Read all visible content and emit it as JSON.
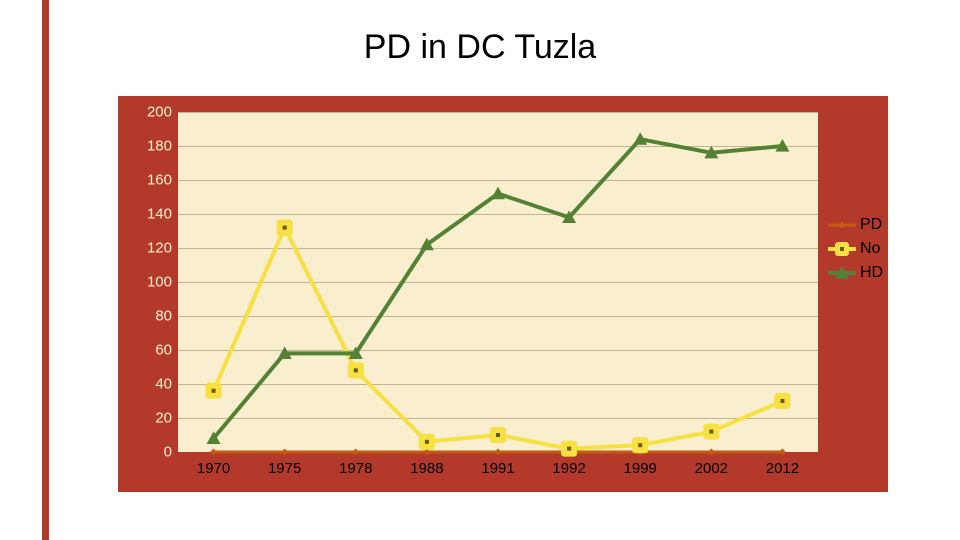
{
  "title": "PD in DC Tuzla",
  "chart": {
    "type": "line",
    "background_color": "#b33a2b",
    "plot_background": "#f9eecd",
    "grid_color": "#c2b492",
    "categories": [
      "1970",
      "1975",
      "1978",
      "1988",
      "1991",
      "1992",
      "1999",
      "2002",
      "2012"
    ],
    "ylim": [
      0,
      200
    ],
    "ytick_step": 20,
    "ytick_color": "#f9eecd",
    "xtick_color": "#000000",
    "tick_fontsize": 15,
    "title_fontsize": 34,
    "series": [
      {
        "name": "PD",
        "values": [
          0,
          0,
          0,
          0,
          0,
          0,
          0,
          0,
          0
        ],
        "color": "#c55a11",
        "line_width": 3,
        "marker": "diamond",
        "marker_size": 7
      },
      {
        "name": "No",
        "values": [
          36,
          132,
          48,
          6,
          10,
          2,
          4,
          12,
          30
        ],
        "color": "#f6e042",
        "line_width": 4,
        "marker": "square-dot",
        "marker_size": 16
      },
      {
        "name": "HD",
        "values": [
          8,
          58,
          58,
          122,
          152,
          138,
          184,
          176,
          180
        ],
        "color": "#548235",
        "line_width": 4,
        "marker": "triangle",
        "marker_size": 14
      }
    ],
    "legend": {
      "position": "right",
      "fontsize": 16
    }
  }
}
